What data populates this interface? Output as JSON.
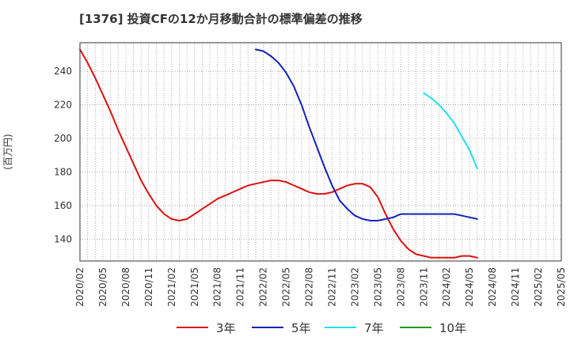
{
  "chart_data": {
    "type": "line",
    "title": "[1376]  投資CFの12か月移動合計の標準偏差の推移",
    "ylabel": "(百万円)",
    "xlabel": "",
    "x_ticks": [
      "2020/02",
      "2020/05",
      "2020/08",
      "2020/11",
      "2021/02",
      "2021/05",
      "2021/08",
      "2021/11",
      "2022/02",
      "2022/05",
      "2022/08",
      "2022/11",
      "2023/02",
      "2023/05",
      "2023/08",
      "2023/11",
      "2024/02",
      "2024/05",
      "2024/08",
      "2024/11",
      "2025/02",
      "2025/05"
    ],
    "y_ticks": [
      140,
      160,
      180,
      200,
      220,
      240
    ],
    "ylim": [
      127,
      257
    ],
    "xlim": [
      "2020/02",
      "2025/05"
    ],
    "grid": true,
    "legend_position": "bottom",
    "series": [
      {
        "name": "3年",
        "color": "#dd1111",
        "points": [
          [
            "2020/02",
            253
          ],
          [
            "2020/03",
            245
          ],
          [
            "2020/04",
            236
          ],
          [
            "2020/05",
            226
          ],
          [
            "2020/06",
            216
          ],
          [
            "2020/07",
            205
          ],
          [
            "2020/08",
            195
          ],
          [
            "2020/09",
            185
          ],
          [
            "2020/10",
            175
          ],
          [
            "2020/11",
            167
          ],
          [
            "2020/12",
            160
          ],
          [
            "2021/01",
            155
          ],
          [
            "2021/02",
            152
          ],
          [
            "2021/03",
            151
          ],
          [
            "2021/04",
            152
          ],
          [
            "2021/05",
            155
          ],
          [
            "2021/06",
            158
          ],
          [
            "2021/07",
            161
          ],
          [
            "2021/08",
            164
          ],
          [
            "2021/09",
            166
          ],
          [
            "2021/10",
            168
          ],
          [
            "2021/11",
            170
          ],
          [
            "2021/12",
            172
          ],
          [
            "2022/01",
            173
          ],
          [
            "2022/02",
            174
          ],
          [
            "2022/03",
            175
          ],
          [
            "2022/04",
            175
          ],
          [
            "2022/05",
            174
          ],
          [
            "2022/06",
            172
          ],
          [
            "2022/07",
            170
          ],
          [
            "2022/08",
            168
          ],
          [
            "2022/09",
            167
          ],
          [
            "2022/10",
            167
          ],
          [
            "2022/11",
            168
          ],
          [
            "2022/12",
            170
          ],
          [
            "2023/01",
            172
          ],
          [
            "2023/02",
            173
          ],
          [
            "2023/03",
            173
          ],
          [
            "2023/04",
            171
          ],
          [
            "2023/05",
            165
          ],
          [
            "2023/06",
            155
          ],
          [
            "2023/07",
            146
          ],
          [
            "2023/08",
            139
          ],
          [
            "2023/09",
            134
          ],
          [
            "2023/10",
            131
          ],
          [
            "2023/11",
            130
          ],
          [
            "2023/12",
            129
          ],
          [
            "2024/01",
            129
          ],
          [
            "2024/02",
            129
          ],
          [
            "2024/03",
            129
          ],
          [
            "2024/04",
            130
          ],
          [
            "2024/05",
            130
          ],
          [
            "2024/06",
            129
          ]
        ]
      },
      {
        "name": "5年",
        "color": "#1122bb",
        "points": [
          [
            "2022/01",
            253
          ],
          [
            "2022/02",
            252
          ],
          [
            "2022/03",
            249
          ],
          [
            "2022/04",
            245
          ],
          [
            "2022/05",
            239
          ],
          [
            "2022/06",
            231
          ],
          [
            "2022/07",
            220
          ],
          [
            "2022/08",
            207
          ],
          [
            "2022/09",
            195
          ],
          [
            "2022/10",
            183
          ],
          [
            "2022/11",
            172
          ],
          [
            "2022/12",
            163
          ],
          [
            "2023/01",
            158
          ],
          [
            "2023/02",
            154
          ],
          [
            "2023/03",
            152
          ],
          [
            "2023/04",
            151
          ],
          [
            "2023/05",
            151
          ],
          [
            "2023/06",
            152
          ],
          [
            "2023/07",
            153
          ],
          [
            "2023/08",
            155
          ],
          [
            "2023/09",
            155
          ],
          [
            "2023/10",
            155
          ],
          [
            "2023/11",
            155
          ],
          [
            "2023/12",
            155
          ],
          [
            "2024/01",
            155
          ],
          [
            "2024/02",
            155
          ],
          [
            "2024/03",
            155
          ],
          [
            "2024/04",
            154
          ],
          [
            "2024/05",
            153
          ],
          [
            "2024/06",
            152
          ]
        ]
      },
      {
        "name": "7年",
        "color": "#22ddee",
        "points": [
          [
            "2023/11",
            227
          ],
          [
            "2023/12",
            224
          ],
          [
            "2024/01",
            220
          ],
          [
            "2024/02",
            215
          ],
          [
            "2024/03",
            209
          ],
          [
            "2024/04",
            201
          ],
          [
            "2024/05",
            193
          ],
          [
            "2024/06",
            182
          ]
        ]
      },
      {
        "name": "10年",
        "color": "#229922",
        "points": []
      }
    ]
  }
}
